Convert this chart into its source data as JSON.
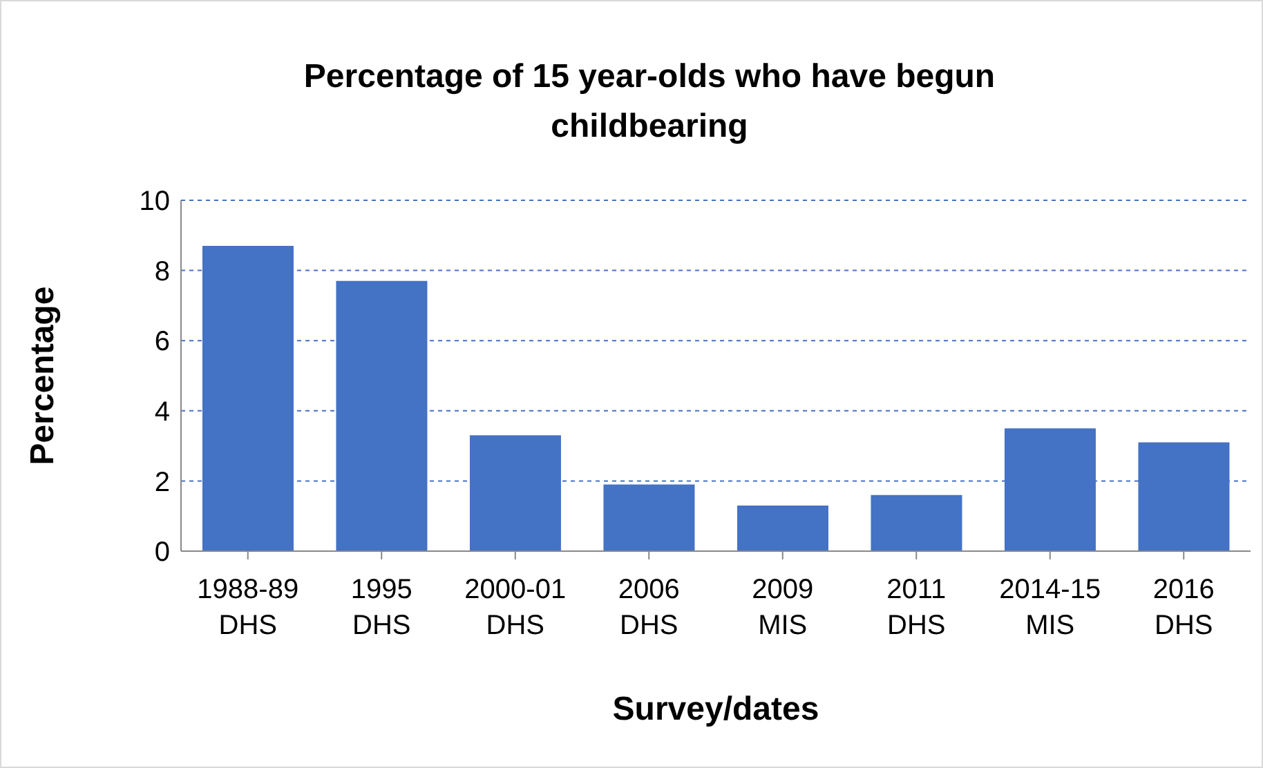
{
  "chart_data": {
    "type": "bar",
    "title": "Percentage of 15 year-olds who have begun childbearing",
    "xlabel": "Survey/dates",
    "ylabel": "Percentage",
    "categories": [
      "1988-89\nDHS",
      "1995\nDHS",
      "2000-01\nDHS",
      "2006\nDHS",
      "2009\nMIS",
      "2011\nDHS",
      "2014-15\nMIS",
      "2016\nDHS"
    ],
    "values": [
      8.7,
      7.7,
      3.3,
      1.9,
      1.3,
      1.6,
      3.5,
      3.1
    ],
    "color": "#4472c4",
    "ylim": [
      0,
      10
    ],
    "yticks": [
      0,
      2,
      4,
      6,
      8,
      10
    ],
    "grid": "y"
  }
}
